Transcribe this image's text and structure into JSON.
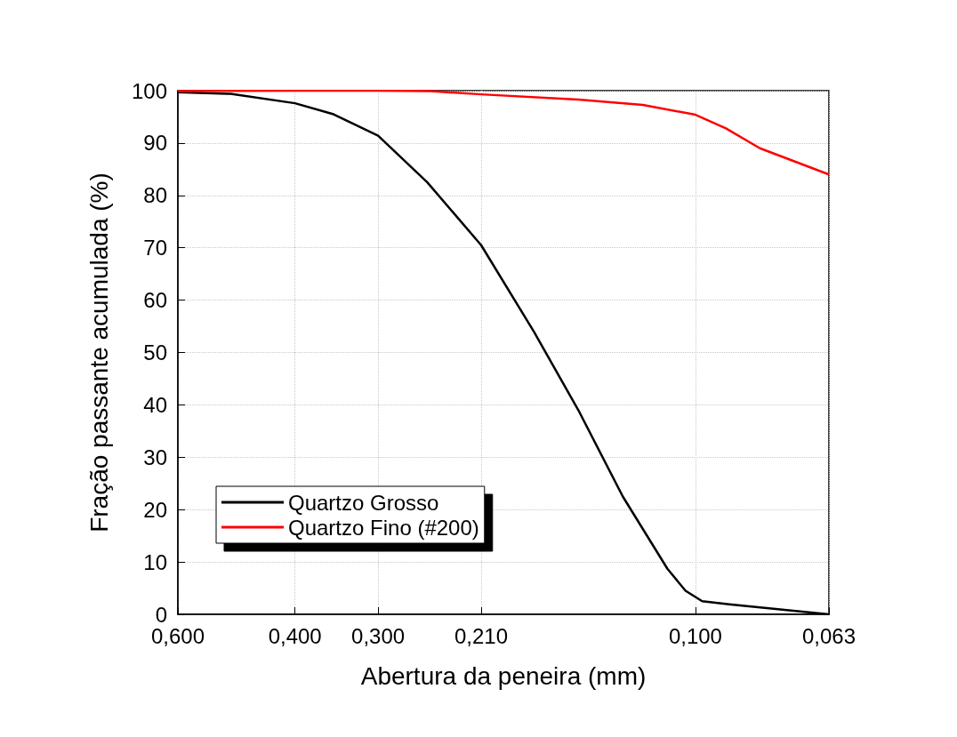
{
  "chart_data": {
    "type": "line",
    "xlabel": "Abertura da peneira (mm)",
    "ylabel": "Fração passante acumulada (%)",
    "log": "x",
    "xlim": [
      0.6,
      0.063
    ],
    "xticks": [
      {
        "value": 0.6,
        "label": "0,600"
      },
      {
        "value": 0.4,
        "label": "0,400"
      },
      {
        "value": 0.3,
        "label": "0,300"
      },
      {
        "value": 0.21,
        "label": "0,210"
      },
      {
        "value": 0.1,
        "label": "0,100"
      },
      {
        "value": 0.063,
        "label": "0,063"
      }
    ],
    "ylim": [
      0,
      100
    ],
    "yticks": [
      0,
      10,
      20,
      30,
      40,
      50,
      60,
      70,
      80,
      90,
      100
    ],
    "grid": true,
    "legend": "bottom left",
    "marker": "none",
    "line_style": "solid",
    "series": [
      {
        "name": "Quartzo Grosso",
        "color": "#000000",
        "x": [
          0.6,
          0.5,
          0.4,
          0.35,
          0.3,
          0.253,
          0.21,
          0.175,
          0.15,
          0.1286,
          0.1102,
          0.1035,
          0.0977,
          0.089,
          0.063
        ],
        "values": [
          99.7,
          99.4,
          97.6,
          95.5,
          91.4,
          82.5,
          70.5,
          54,
          39,
          22.5,
          8.7,
          4.5,
          2.5,
          1.9,
          0
        ]
      },
      {
        "name": "Quartzo Fino (#200)",
        "color": "#ff0000",
        "x": [
          0.6,
          0.4,
          0.3,
          0.25,
          0.21,
          0.15,
          0.12,
          0.1,
          0.09,
          0.08,
          0.063
        ],
        "values": [
          99.9,
          100,
          100,
          99.9,
          99.3,
          98.3,
          97.3,
          95.4,
          92.8,
          89,
          84
        ]
      }
    ]
  }
}
